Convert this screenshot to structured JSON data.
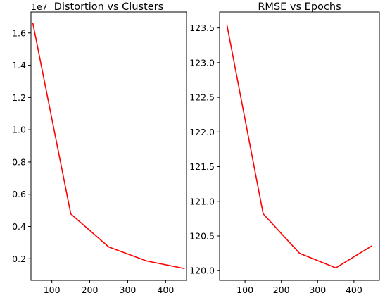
{
  "chart_data": [
    {
      "type": "line",
      "title": "Distortion vs Clusters",
      "offset_label": "1e7",
      "xlim": [
        45,
        455
      ],
      "ylim": [
        0.066,
        1.73
      ],
      "x_ticks": [
        100,
        200,
        300,
        400
      ],
      "y_ticks": [
        0.2,
        0.4,
        0.6,
        0.8,
        1.0,
        1.2,
        1.4,
        1.6
      ],
      "y_tick_labels": [
        "0.2",
        "0.4",
        "0.6",
        "0.8",
        "1.0",
        "1.2",
        "1.4",
        "1.6"
      ],
      "grid": false,
      "series": [
        {
          "color": "#ff0000",
          "x": [
            50,
            150,
            250,
            350,
            450
          ],
          "y": [
            1.66,
            0.478,
            0.273,
            0.186,
            0.139
          ]
        }
      ]
    },
    {
      "type": "line",
      "title": "RMSE vs Epochs",
      "xlim": [
        30,
        470
      ],
      "ylim": [
        119.86,
        123.73
      ],
      "x_ticks": [
        100,
        200,
        300,
        400
      ],
      "y_ticks": [
        120.0,
        120.5,
        121.0,
        121.5,
        122.0,
        122.5,
        123.0,
        123.5
      ],
      "y_tick_labels": [
        "120.0",
        "120.5",
        "121.0",
        "121.5",
        "122.0",
        "122.5",
        "123.0",
        "123.5"
      ],
      "grid": false,
      "series": [
        {
          "color": "#ff0000",
          "x": [
            50,
            150,
            250,
            350,
            450
          ],
          "y": [
            123.55,
            120.82,
            120.25,
            120.04,
            120.36
          ]
        }
      ]
    }
  ]
}
